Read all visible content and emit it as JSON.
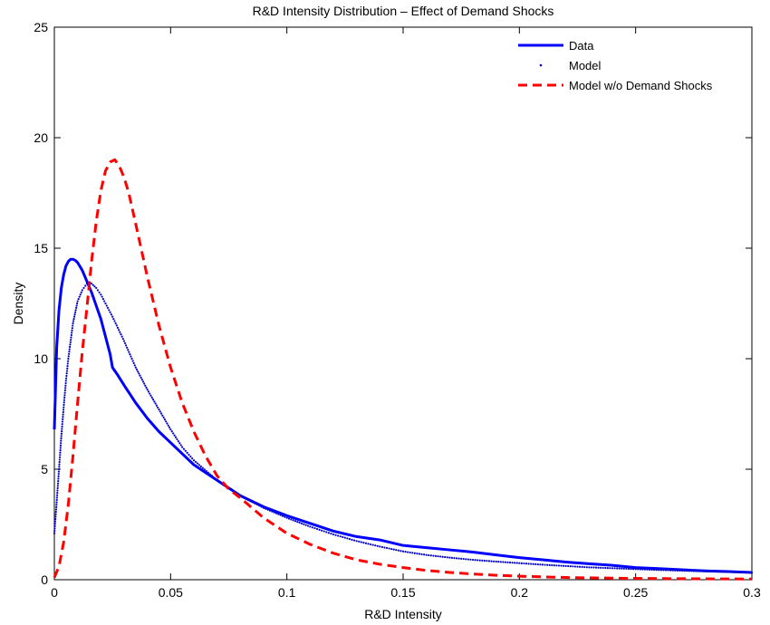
{
  "chart_data": {
    "type": "line",
    "title": "R&D Intensity Distribution – Effect of Demand Shocks",
    "xlabel": "R&D Intensity",
    "ylabel": "Density",
    "xlim": [
      0,
      0.3
    ],
    "ylim": [
      0,
      25
    ],
    "x_ticks": [
      0,
      0.05,
      0.1,
      0.15,
      0.2,
      0.25,
      0.3
    ],
    "x_tick_labels": [
      "0",
      "0.05",
      "0.1",
      "0.15",
      "0.2",
      "0.25",
      "0.3"
    ],
    "y_ticks": [
      0,
      5,
      10,
      15,
      20,
      25
    ],
    "y_tick_labels": [
      "0",
      "5",
      "10",
      "15",
      "20",
      "25"
    ],
    "grid": false,
    "legend_position": "top-right",
    "series": [
      {
        "name": "Data",
        "color": "#0000ff",
        "style": "solid",
        "x": [
          0,
          0.001,
          0.002,
          0.003,
          0.004,
          0.005,
          0.006,
          0.007,
          0.008,
          0.009,
          0.01,
          0.012,
          0.014,
          0.016,
          0.018,
          0.02,
          0.022,
          0.024,
          0.025,
          0.027,
          0.03,
          0.035,
          0.04,
          0.045,
          0.05,
          0.06,
          0.07,
          0.08,
          0.09,
          0.1,
          0.11,
          0.12,
          0.13,
          0.14,
          0.15,
          0.16,
          0.17,
          0.18,
          0.19,
          0.2,
          0.21,
          0.22,
          0.23,
          0.24,
          0.25,
          0.26,
          0.27,
          0.28,
          0.29,
          0.3
        ],
        "y": [
          6.8,
          10.5,
          12.2,
          13.2,
          13.8,
          14.2,
          14.4,
          14.5,
          14.5,
          14.45,
          14.35,
          14.0,
          13.5,
          13.0,
          12.4,
          11.8,
          11.0,
          10.2,
          9.6,
          9.3,
          8.8,
          8.0,
          7.3,
          6.7,
          6.2,
          5.2,
          4.5,
          3.8,
          3.3,
          2.9,
          2.55,
          2.2,
          1.95,
          1.8,
          1.55,
          1.45,
          1.35,
          1.25,
          1.12,
          1.0,
          0.9,
          0.8,
          0.72,
          0.65,
          0.55,
          0.5,
          0.45,
          0.4,
          0.37,
          0.33
        ]
      },
      {
        "name": "Model",
        "color": "#0000cc",
        "style": "dotted",
        "x": [
          0,
          0.001,
          0.002,
          0.003,
          0.004,
          0.005,
          0.006,
          0.008,
          0.01,
          0.012,
          0.014,
          0.015,
          0.016,
          0.018,
          0.02,
          0.022,
          0.025,
          0.03,
          0.035,
          0.04,
          0.045,
          0.05,
          0.055,
          0.06,
          0.07,
          0.08,
          0.09,
          0.1,
          0.11,
          0.12,
          0.13,
          0.14,
          0.15,
          0.16,
          0.17,
          0.18,
          0.19,
          0.2,
          0.21,
          0.22,
          0.23,
          0.24,
          0.25,
          0.26,
          0.27,
          0.28,
          0.29,
          0.3
        ],
        "y": [
          2.1,
          3.5,
          5.0,
          6.5,
          7.8,
          9.0,
          10.0,
          11.6,
          12.6,
          13.1,
          13.4,
          13.45,
          13.4,
          13.2,
          12.9,
          12.5,
          11.9,
          10.8,
          9.6,
          8.6,
          7.7,
          6.8,
          6.0,
          5.4,
          4.5,
          3.8,
          3.25,
          2.8,
          2.4,
          2.05,
          1.75,
          1.5,
          1.28,
          1.12,
          1.0,
          0.9,
          0.82,
          0.75,
          0.68,
          0.62,
          0.56,
          0.52,
          0.48,
          0.44,
          0.41,
          0.38,
          0.35,
          0.32
        ]
      },
      {
        "name": "Model w/o Demand Shocks",
        "color": "#ff0000",
        "style": "dashed",
        "x": [
          0,
          0.002,
          0.004,
          0.006,
          0.008,
          0.01,
          0.012,
          0.014,
          0.016,
          0.018,
          0.02,
          0.022,
          0.024,
          0.026,
          0.028,
          0.03,
          0.032,
          0.035,
          0.04,
          0.045,
          0.05,
          0.055,
          0.06,
          0.065,
          0.07,
          0.075,
          0.08,
          0.09,
          0.1,
          0.11,
          0.12,
          0.13,
          0.14,
          0.15,
          0.16,
          0.17,
          0.18,
          0.19,
          0.2,
          0.22,
          0.24,
          0.26,
          0.28,
          0.3
        ],
        "y": [
          0.1,
          0.6,
          1.7,
          3.4,
          5.6,
          8.0,
          10.3,
          12.3,
          14.4,
          16.2,
          17.6,
          18.5,
          18.9,
          19.0,
          18.7,
          18.2,
          17.5,
          16.1,
          13.7,
          11.5,
          9.6,
          8.0,
          6.7,
          5.6,
          4.7,
          4.1,
          3.7,
          2.8,
          2.1,
          1.6,
          1.2,
          0.9,
          0.7,
          0.55,
          0.42,
          0.33,
          0.26,
          0.2,
          0.16,
          0.1,
          0.07,
          0.05,
          0.04,
          0.03
        ]
      }
    ]
  }
}
